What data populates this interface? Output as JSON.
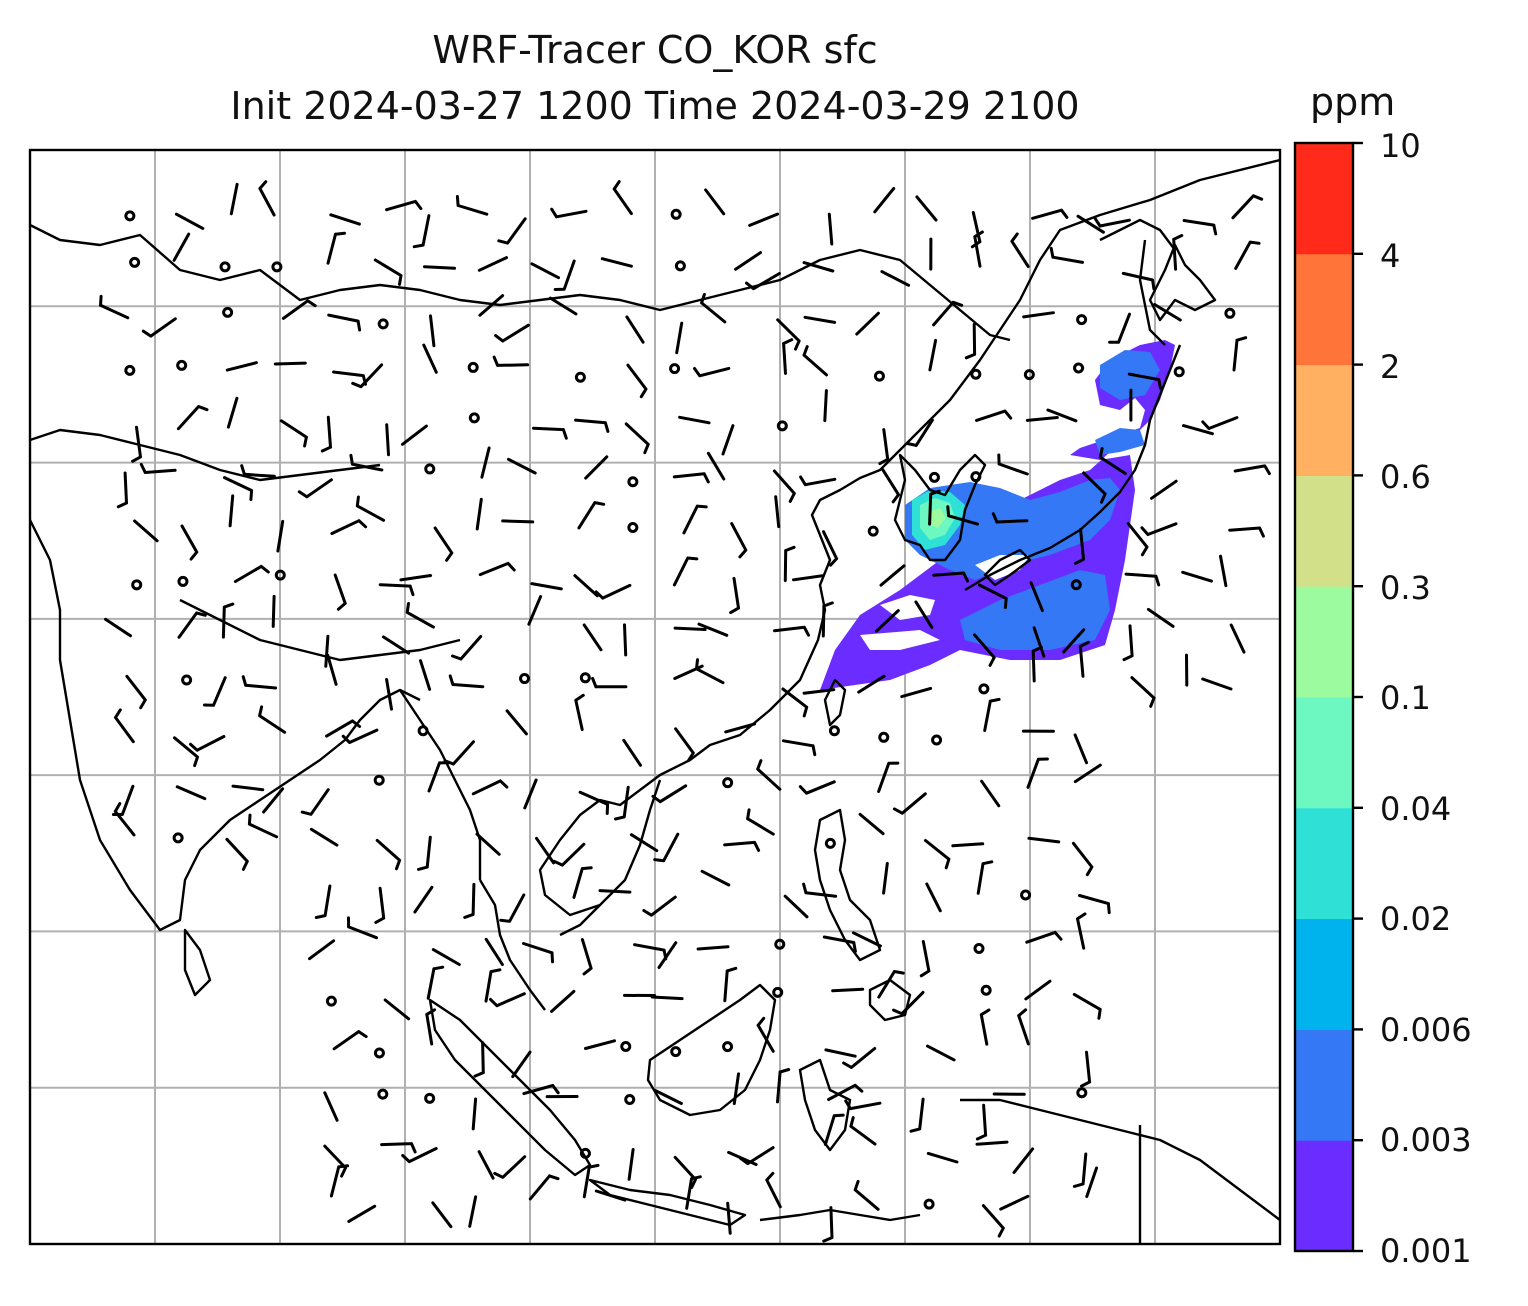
{
  "title": {
    "line1": "WRF-Tracer CO_KOR sfc",
    "line2": "Init 2024-03-27 1200 Time 2024-03-29 2100"
  },
  "map": {
    "extent_lon": [
      60,
      160
    ],
    "extent_lat": [
      -10,
      60
    ],
    "grid_lons": [
      70,
      80,
      90,
      100,
      110,
      120,
      130,
      140,
      150
    ],
    "grid_lats": [
      0,
      10,
      20,
      30,
      40,
      50
    ],
    "grid_color": "#b0b0b0",
    "coastline_color": "#000000",
    "wind_barb_color": "#000000"
  },
  "colorbar": {
    "unit": "ppm",
    "ticks": [
      "10",
      "4",
      "2",
      "0.6",
      "0.3",
      "0.1",
      "0.04",
      "0.02",
      "0.006",
      "0.003",
      "0.001"
    ],
    "colors": [
      "#6a2cff",
      "#3478f5",
      "#00b3ec",
      "#2ee0d6",
      "#6cf8c0",
      "#9cfa9f",
      "#d2e189",
      "#ffb060",
      "#ff7438",
      "#ff2a1a"
    ]
  },
  "field": {
    "name": "CO_KOR",
    "level": "sfc",
    "plume_core_range_ppm": "0.04-0.3",
    "plume_edge_range_ppm": "0.001-0.006"
  }
}
